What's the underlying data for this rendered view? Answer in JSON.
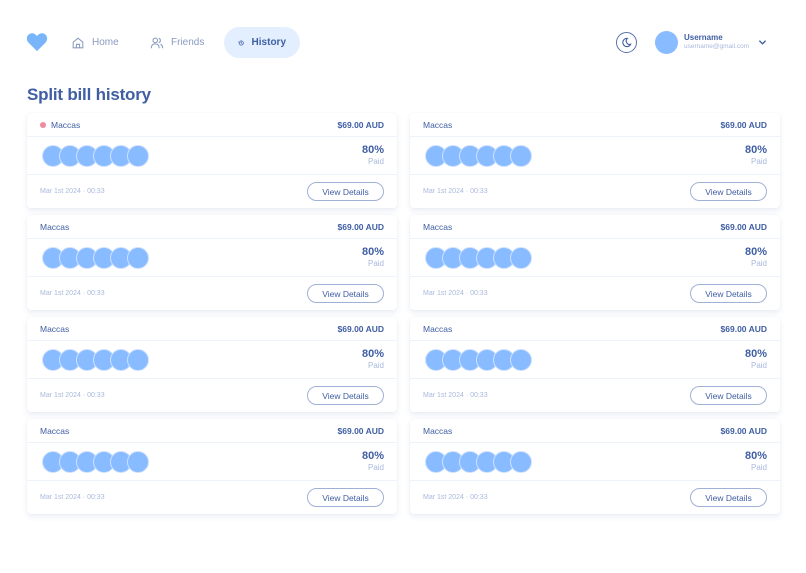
{
  "header": {
    "logo_icon": "heart-icon",
    "nav": [
      {
        "label": "Home",
        "icon": "home-icon",
        "active": false
      },
      {
        "label": "Friends",
        "icon": "users-icon",
        "active": false
      },
      {
        "label": "History",
        "icon": "history-icon",
        "active": true
      }
    ],
    "theme_toggle_icon": "moon-icon",
    "user": {
      "name": "Username",
      "email": "username@gmail.com",
      "menu_icon": "chevron-down-icon"
    }
  },
  "page": {
    "title": "Split bill history"
  },
  "colors": {
    "accent": "#3f5ea3",
    "avatar": "#88bbff",
    "active_nav_bg": "#e3efff",
    "unread_dot": "#ef8aa0",
    "muted": "#a9b8dc"
  },
  "bills": [
    {
      "name": "Maccas",
      "amount": "$69.00 AUD",
      "percent": "80%",
      "percent_label": "Paid",
      "date": "Mar 1st 2024 · 00:33",
      "button": "View Details",
      "unread": true,
      "avatar_count": 6
    },
    {
      "name": "Maccas",
      "amount": "$69.00 AUD",
      "percent": "80%",
      "percent_label": "Paid",
      "date": "Mar 1st 2024 · 00:33",
      "button": "View Details",
      "unread": false,
      "avatar_count": 6
    },
    {
      "name": "Maccas",
      "amount": "$69.00 AUD",
      "percent": "80%",
      "percent_label": "Paid",
      "date": "Mar 1st 2024 · 00:33",
      "button": "View Details",
      "unread": false,
      "avatar_count": 6
    },
    {
      "name": "Maccas",
      "amount": "$69.00 AUD",
      "percent": "80%",
      "percent_label": "Paid",
      "date": "Mar 1st 2024 · 00:33",
      "button": "View Details",
      "unread": false,
      "avatar_count": 6
    },
    {
      "name": "Maccas",
      "amount": "$69.00 AUD",
      "percent": "80%",
      "percent_label": "Paid",
      "date": "Mar 1st 2024 · 00:33",
      "button": "View Details",
      "unread": false,
      "avatar_count": 6
    },
    {
      "name": "Maccas",
      "amount": "$69.00 AUD",
      "percent": "80%",
      "percent_label": "Paid",
      "date": "Mar 1st 2024 · 00:33",
      "button": "View Details",
      "unread": false,
      "avatar_count": 6
    },
    {
      "name": "Maccas",
      "amount": "$69.00 AUD",
      "percent": "80%",
      "percent_label": "Paid",
      "date": "Mar 1st 2024 · 00:33",
      "button": "View Details",
      "unread": false,
      "avatar_count": 6
    },
    {
      "name": "Maccas",
      "amount": "$69.00 AUD",
      "percent": "80%",
      "percent_label": "Paid",
      "date": "Mar 1st 2024 · 00:33",
      "button": "View Details",
      "unread": false,
      "avatar_count": 6
    }
  ]
}
